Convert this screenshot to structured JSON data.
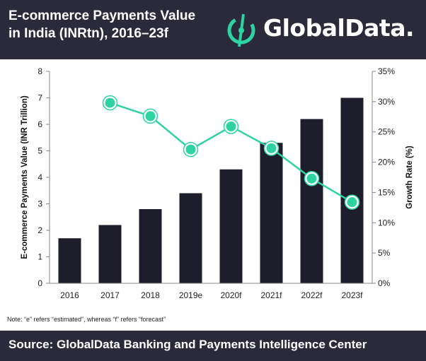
{
  "header": {
    "title_line1": "E-commerce Payments Value",
    "title_line2": "in India (INRtn), 2016–23f",
    "logo_text": "GlobalData."
  },
  "note": "Note: “e” refers “estimated”, whereas “f” refers “forecast”",
  "footer": {
    "source": "Source: GlobalData Banking and Payments Intelligence Center"
  },
  "colors": {
    "header_bg": "#2b2a3a",
    "bar": "#1e1d2b",
    "line": "#2ed3a1",
    "logo_accent": "#2ed3a1"
  },
  "chart_data": {
    "type": "bar",
    "categories": [
      "2016",
      "2017",
      "2018",
      "2019e",
      "2020f",
      "2021f",
      "2022f",
      "2023f"
    ],
    "series": [
      {
        "values": [
          1.7,
          2.2,
          2.8,
          3.4,
          4.3,
          5.3,
          6.2,
          7.0
        ],
        "axis": "left",
        "type": "bar"
      },
      {
        "values": [
          null,
          29.8,
          27.6,
          22.1,
          25.9,
          22.3,
          17.3,
          13.4
        ],
        "axis": "right",
        "type": "line"
      }
    ],
    "ylabel": "E-commerce Payments Value (INR Trillion)",
    "ylim": [
      0,
      8
    ],
    "yticks": [
      "0",
      "1",
      "2",
      "3",
      "4",
      "5",
      "6",
      "7",
      "8"
    ],
    "y2label": "Growth Rate (%)",
    "y2lim": [
      0,
      35
    ],
    "y2ticks": [
      "0%",
      "5%",
      "10%",
      "15%",
      "20%",
      "25%",
      "30%",
      "35%"
    ],
    "grid": false,
    "legend": "none"
  }
}
